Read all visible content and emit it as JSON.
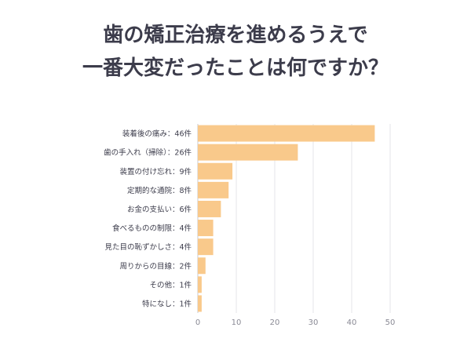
{
  "title_lines": [
    "歯の矯正治療を進めるうえで",
    "一番大変だったことは何ですか？"
  ],
  "chart_data": {
    "type": "bar",
    "orientation": "horizontal",
    "title": "歯の矯正治療を進めるうえで一番大変だったことは何ですか？",
    "categories": [
      "装着後の痛み：46件",
      "歯の手入れ（掃除）：26件",
      "装置の付け忘れ：9件",
      "定期的な通院：8件",
      "お金の支払い：6件",
      "食べるものの制限：4件",
      "見た目の恥ずかしさ：4件",
      "周りからの目線：2件",
      "その他：1件",
      "特になし：1件"
    ],
    "values": [
      46,
      26,
      9,
      8,
      6,
      4,
      4,
      2,
      1,
      1
    ],
    "x_ticks": [
      "0",
      "10",
      "20",
      "30",
      "40",
      "50"
    ],
    "xlim": [
      0,
      50
    ],
    "grid": true,
    "bar_color": "#f9c98b"
  }
}
